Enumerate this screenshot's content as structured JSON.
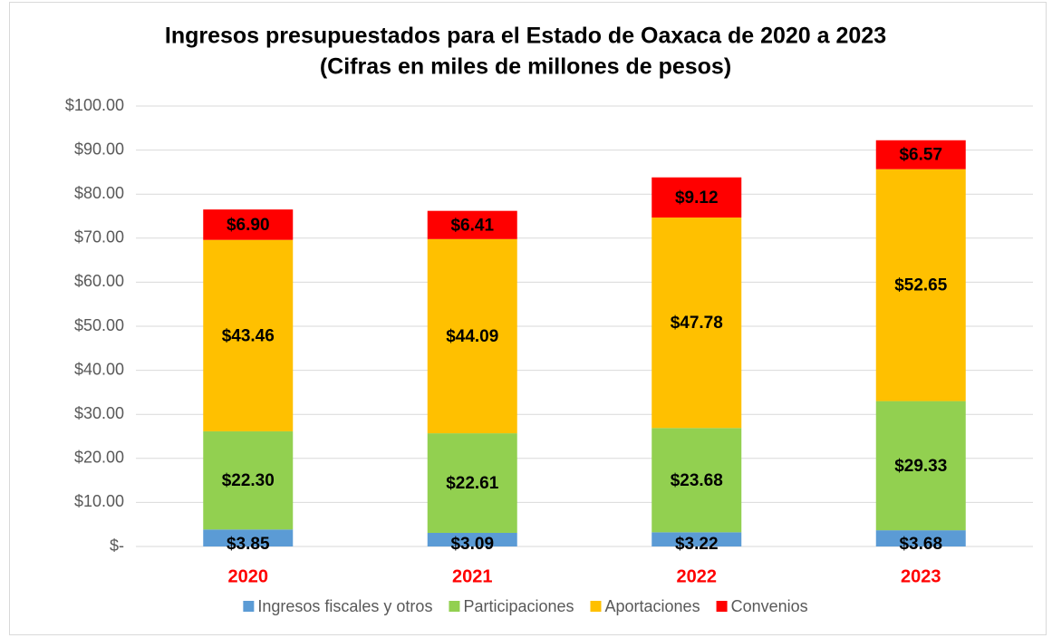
{
  "chart_data": {
    "type": "stacked_bar",
    "title": "Ingresos presupuestados para el Estado de Oaxaca de 2020 a 2023",
    "subtitle": "(Cifras en miles de millones de pesos)",
    "categories": [
      "2020",
      "2021",
      "2022",
      "2023"
    ],
    "category_color": "#ff0000",
    "series": [
      {
        "name": "Ingresos fiscales y otros",
        "color": "#5b9bd5",
        "values": [
          3.85,
          3.09,
          3.22,
          3.68
        ],
        "value_labels": [
          "$3.85",
          "$3.09",
          "$3.22",
          "$3.68"
        ]
      },
      {
        "name": "Participaciones",
        "color": "#92d050",
        "values": [
          22.3,
          22.61,
          23.68,
          29.33
        ],
        "value_labels": [
          "$22.30",
          "$22.61",
          "$23.68",
          "$29.33"
        ]
      },
      {
        "name": "Aportaciones",
        "color": "#ffc000",
        "values": [
          43.46,
          44.09,
          47.78,
          52.65
        ],
        "value_labels": [
          "$43.46",
          "$44.09",
          "$47.78",
          "$52.65"
        ]
      },
      {
        "name": "Convenios",
        "color": "#ff0000",
        "values": [
          6.9,
          6.41,
          9.12,
          6.57
        ],
        "value_labels": [
          "$6.90",
          "$6.41",
          "$9.12",
          "$6.57"
        ]
      }
    ],
    "ylim": [
      0,
      100
    ],
    "yticks": [
      {
        "value": 0,
        "label": "$-"
      },
      {
        "value": 10,
        "label": "$10.00"
      },
      {
        "value": 20,
        "label": "$20.00"
      },
      {
        "value": 30,
        "label": "$30.00"
      },
      {
        "value": 40,
        "label": "$40.00"
      },
      {
        "value": 50,
        "label": "$50.00"
      },
      {
        "value": 60,
        "label": "$60.00"
      },
      {
        "value": 70,
        "label": "$70.00"
      },
      {
        "value": 80,
        "label": "$80.00"
      },
      {
        "value": 90,
        "label": "$90.00"
      },
      {
        "value": 100,
        "label": "$100.00"
      }
    ],
    "grid": true,
    "legend": "bottom"
  }
}
